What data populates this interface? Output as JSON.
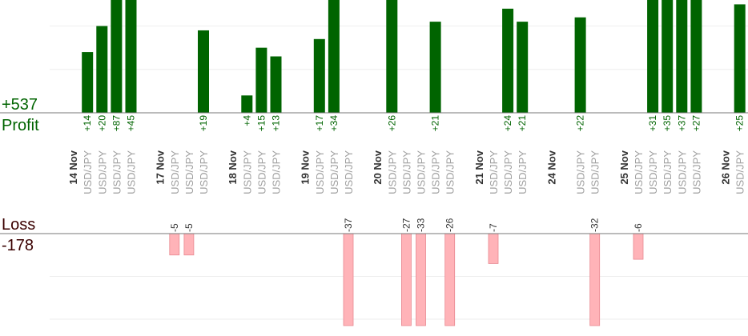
{
  "chart_data": {
    "type": "bar",
    "profit": {
      "label": "Profit",
      "total": "+537",
      "color": "#006400",
      "values": [
        {
          "slot": 5,
          "value": 14,
          "label": "+14"
        },
        {
          "slot": 6,
          "value": 20,
          "label": "+20"
        },
        {
          "slot": 7,
          "value": 87,
          "label": "+87"
        },
        {
          "slot": 8,
          "value": 45,
          "label": "+45"
        },
        {
          "slot": 13,
          "value": 19,
          "label": "+19"
        },
        {
          "slot": 16,
          "value": 4,
          "label": "+4"
        },
        {
          "slot": 17,
          "value": 15,
          "label": "+15"
        },
        {
          "slot": 18,
          "value": 13,
          "label": "+13"
        },
        {
          "slot": 21,
          "value": 17,
          "label": "+17"
        },
        {
          "slot": 22,
          "value": 34,
          "label": "+34"
        },
        {
          "slot": 26,
          "value": 26,
          "label": "+26"
        },
        {
          "slot": 29,
          "value": 21,
          "label": "+21"
        },
        {
          "slot": 34,
          "value": 24,
          "label": "+24"
        },
        {
          "slot": 35,
          "value": 21,
          "label": "+21"
        },
        {
          "slot": 39,
          "value": 22,
          "label": "+22"
        },
        {
          "slot": 44,
          "value": 31,
          "label": "+31"
        },
        {
          "slot": 45,
          "value": 35,
          "label": "+35"
        },
        {
          "slot": 46,
          "value": 37,
          "label": "+37"
        },
        {
          "slot": 47,
          "value": 27,
          "label": "+27"
        },
        {
          "slot": 50,
          "value": 25,
          "label": "+25"
        }
      ]
    },
    "loss": {
      "label": "Loss",
      "total": "-178",
      "color": "#ffb3b8",
      "values": [
        {
          "slot": 11,
          "value": -5,
          "label": "-5"
        },
        {
          "slot": 12,
          "value": -5,
          "label": "-5"
        },
        {
          "slot": 23,
          "value": -37,
          "label": "-37"
        },
        {
          "slot": 27,
          "value": -27,
          "label": "-27"
        },
        {
          "slot": 28,
          "value": -33,
          "label": "-33"
        },
        {
          "slot": 30,
          "value": -26,
          "label": "-26"
        },
        {
          "slot": 33,
          "value": -7,
          "label": "-7"
        },
        {
          "slot": 40,
          "value": -32,
          "label": "-32"
        },
        {
          "slot": 43,
          "value": -6,
          "label": "-6"
        }
      ]
    },
    "profit_ylim": [
      0,
      26
    ],
    "loss_ylim": [
      -21.5,
      0
    ],
    "instrument": "USD/JPY",
    "dates": [
      {
        "slot": 4,
        "label": "14 Nov"
      },
      {
        "slot": 10,
        "label": "17 Nov"
      },
      {
        "slot": 15,
        "label": "18 Nov"
      },
      {
        "slot": 20,
        "label": "19 Nov"
      },
      {
        "slot": 25,
        "label": "20 Nov"
      },
      {
        "slot": 32,
        "label": "21 Nov"
      },
      {
        "slot": 37,
        "label": "24 Nov"
      },
      {
        "slot": 42,
        "label": "25 Nov"
      },
      {
        "slot": 49,
        "label": "26 Nov"
      }
    ],
    "slot_count": 51,
    "grid": true
  }
}
